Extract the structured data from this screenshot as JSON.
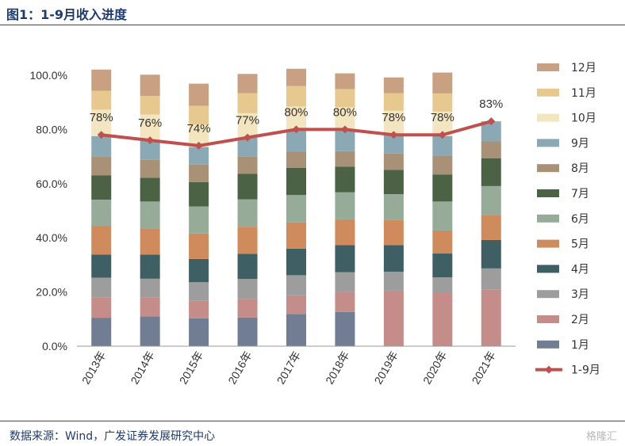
{
  "header": {
    "title": "图1：1-9月收入进度"
  },
  "footer": {
    "source": "数据来源：Wind，广发证券发展研究中心",
    "watermark": "格隆汇"
  },
  "chart_data": {
    "type": "bar",
    "stacked": true,
    "categories": [
      "2013年",
      "2014年",
      "2015年",
      "2016年",
      "2017年",
      "2018年",
      "2019年",
      "2020年",
      "2021年"
    ],
    "ylim": [
      0,
      100
    ],
    "yticks": [
      "0.0%",
      "20.0%",
      "40.0%",
      "60.0%",
      "80.0%",
      "100.0%"
    ],
    "ytick_values": [
      0,
      20,
      40,
      60,
      80,
      100
    ],
    "series": [
      {
        "name": "1月",
        "color": "#717d92",
        "values": [
          10.5,
          11.0,
          10.3,
          10.6,
          11.9,
          12.6,
          0,
          0,
          0
        ]
      },
      {
        "name": "2月",
        "color": "#c48d89",
        "values": [
          7.4,
          6.9,
          6.6,
          6.9,
          6.9,
          7.4,
          20.5,
          19.6,
          21.0
        ]
      },
      {
        "name": "3月",
        "color": "#9d9d9d",
        "values": [
          7.4,
          7.0,
          6.7,
          7.3,
          7.4,
          7.3,
          7.0,
          5.8,
          7.7
        ]
      },
      {
        "name": "4月",
        "color": "#3e5f63",
        "values": [
          8.5,
          8.9,
          8.6,
          9.3,
          9.8,
          10.0,
          9.8,
          8.8,
          10.5
        ]
      },
      {
        "name": "5月",
        "color": "#d08b5c",
        "values": [
          10.5,
          9.6,
          9.4,
          10.0,
          9.7,
          9.5,
          9.3,
          8.5,
          9.3
        ]
      },
      {
        "name": "6月",
        "color": "#96ac98",
        "values": [
          9.8,
          10.0,
          10.0,
          10.1,
          10.1,
          10.0,
          9.5,
          10.7,
          10.6
        ]
      },
      {
        "name": "7月",
        "color": "#4b6245",
        "values": [
          9.0,
          8.8,
          9.0,
          9.4,
          10.0,
          9.5,
          9.0,
          10.0,
          10.2
        ]
      },
      {
        "name": "8月",
        "color": "#a89176",
        "values": [
          7.0,
          6.6,
          6.4,
          6.3,
          6.1,
          5.7,
          6.0,
          6.9,
          6.3
        ]
      },
      {
        "name": "9月",
        "color": "#8aa9b4",
        "values": [
          7.4,
          7.2,
          6.5,
          7.1,
          7.6,
          7.5,
          7.1,
          7.2,
          7.4
        ]
      },
      {
        "name": "10月",
        "color": "#f2e5c0",
        "values": [
          9.8,
          9.5,
          8.3,
          9.0,
          8.9,
          8.7,
          8.7,
          9.1,
          0
        ]
      },
      {
        "name": "11月",
        "color": "#e7c98f",
        "values": [
          7.0,
          6.9,
          6.9,
          7.4,
          7.6,
          6.7,
          6.5,
          6.7,
          0
        ]
      },
      {
        "name": "12月",
        "color": "#c9a182",
        "values": [
          7.8,
          7.8,
          8.2,
          7.1,
          6.4,
          5.8,
          5.8,
          7.7,
          0
        ]
      }
    ],
    "line": {
      "name": "1-9月",
      "color": "#c0504d",
      "values": [
        78,
        76,
        74,
        77,
        80,
        80,
        78,
        78,
        83
      ],
      "labels": [
        "78%",
        "76%",
        "74%",
        "77%",
        "80%",
        "80%",
        "78%",
        "78%",
        "83%"
      ]
    },
    "legend_position": "right",
    "grid": false
  }
}
